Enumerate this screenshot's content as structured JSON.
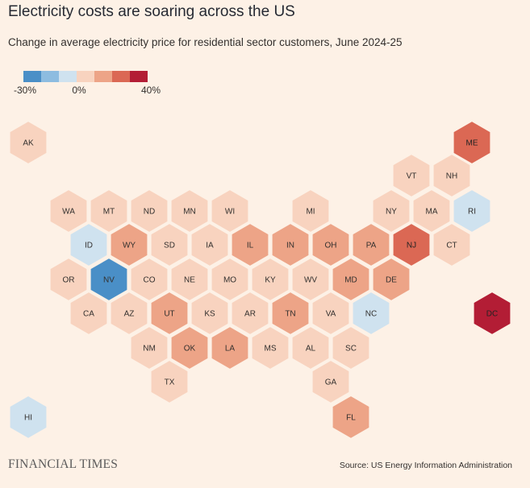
{
  "title": "Electricity costs are soaring across the US",
  "subtitle": "Change in average electricity price for residential sector customers, June 2024-25",
  "legend": {
    "colors": [
      "#4a8fc7",
      "#8dbce0",
      "#cfe2ef",
      "#f8d3bf",
      "#eda487",
      "#db6854",
      "#b31d35"
    ],
    "labels": [
      {
        "text": "-30%",
        "position": "left"
      },
      {
        "text": "0%",
        "position": "middle"
      },
      {
        "text": "40%",
        "position": "right"
      }
    ]
  },
  "chart_data": {
    "type": "hex tile map",
    "title": "Electricity costs are soaring across the US",
    "subtitle": "Change in average electricity price for residential sector customers, June 2024-25",
    "color_scale": {
      "min": "-30%",
      "mid": "0%",
      "max": "40%"
    },
    "states": [
      {
        "code": "AK",
        "bin": 3
      },
      {
        "code": "ME",
        "bin": 5
      },
      {
        "code": "VT",
        "bin": 3
      },
      {
        "code": "NH",
        "bin": 3
      },
      {
        "code": "WA",
        "bin": 3
      },
      {
        "code": "MT",
        "bin": 3
      },
      {
        "code": "ND",
        "bin": 3
      },
      {
        "code": "MN",
        "bin": 3
      },
      {
        "code": "WI",
        "bin": 3
      },
      {
        "code": "MI",
        "bin": 3
      },
      {
        "code": "NY",
        "bin": 3
      },
      {
        "code": "MA",
        "bin": 3
      },
      {
        "code": "RI",
        "bin": 2
      },
      {
        "code": "ID",
        "bin": 2
      },
      {
        "code": "WY",
        "bin": 4
      },
      {
        "code": "SD",
        "bin": 3
      },
      {
        "code": "IA",
        "bin": 3
      },
      {
        "code": "IL",
        "bin": 4
      },
      {
        "code": "IN",
        "bin": 4
      },
      {
        "code": "OH",
        "bin": 4
      },
      {
        "code": "PA",
        "bin": 4
      },
      {
        "code": "NJ",
        "bin": 5
      },
      {
        "code": "CT",
        "bin": 3
      },
      {
        "code": "OR",
        "bin": 3
      },
      {
        "code": "NV",
        "bin": 0
      },
      {
        "code": "CO",
        "bin": 3
      },
      {
        "code": "NE",
        "bin": 3
      },
      {
        "code": "MO",
        "bin": 3
      },
      {
        "code": "KY",
        "bin": 3
      },
      {
        "code": "WV",
        "bin": 3
      },
      {
        "code": "MD",
        "bin": 4
      },
      {
        "code": "DE",
        "bin": 4
      },
      {
        "code": "CA",
        "bin": 3
      },
      {
        "code": "AZ",
        "bin": 3
      },
      {
        "code": "UT",
        "bin": 4
      },
      {
        "code": "KS",
        "bin": 3
      },
      {
        "code": "AR",
        "bin": 3
      },
      {
        "code": "TN",
        "bin": 4
      },
      {
        "code": "VA",
        "bin": 3
      },
      {
        "code": "NC",
        "bin": 2
      },
      {
        "code": "DC",
        "bin": 6
      },
      {
        "code": "NM",
        "bin": 3
      },
      {
        "code": "OK",
        "bin": 4
      },
      {
        "code": "LA",
        "bin": 4
      },
      {
        "code": "MS",
        "bin": 3
      },
      {
        "code": "AL",
        "bin": 3
      },
      {
        "code": "SC",
        "bin": 3
      },
      {
        "code": "TX",
        "bin": 3
      },
      {
        "code": "GA",
        "bin": 3
      },
      {
        "code": "HI",
        "bin": 2
      },
      {
        "code": "FL",
        "bin": 4
      }
    ]
  },
  "footer": {
    "logo": "FINANCIAL TIMES",
    "source": "Source: US Energy Information Administration"
  }
}
